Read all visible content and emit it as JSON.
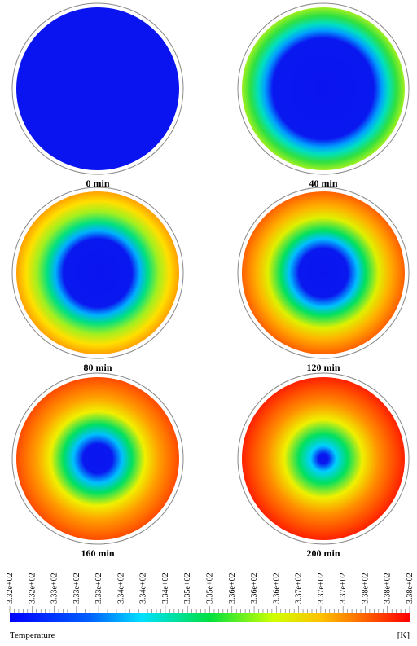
{
  "panels": [
    {
      "label": "0 min"
    },
    {
      "label": "40 min"
    },
    {
      "label": "80 min"
    },
    {
      "label": "120 min"
    },
    {
      "label": "160 min"
    },
    {
      "label": "200 min"
    }
  ],
  "colorbar": {
    "ticks": [
      "3.32e+02",
      "3.32e+02",
      "3.33e+02",
      "3.33e+02",
      "3.33e+02",
      "3.34e+02",
      "3.34e+02",
      "3.34e+02",
      "3.35e+02",
      "3.35e+02",
      "3.36e+02",
      "3.36e+02",
      "3.36e+02",
      "3.37e+02",
      "3.37e+02",
      "3.37e+02",
      "3.38e+02",
      "3.38e+02",
      "3.38e+02"
    ],
    "title": "Temperature",
    "unit": "[K]"
  }
}
